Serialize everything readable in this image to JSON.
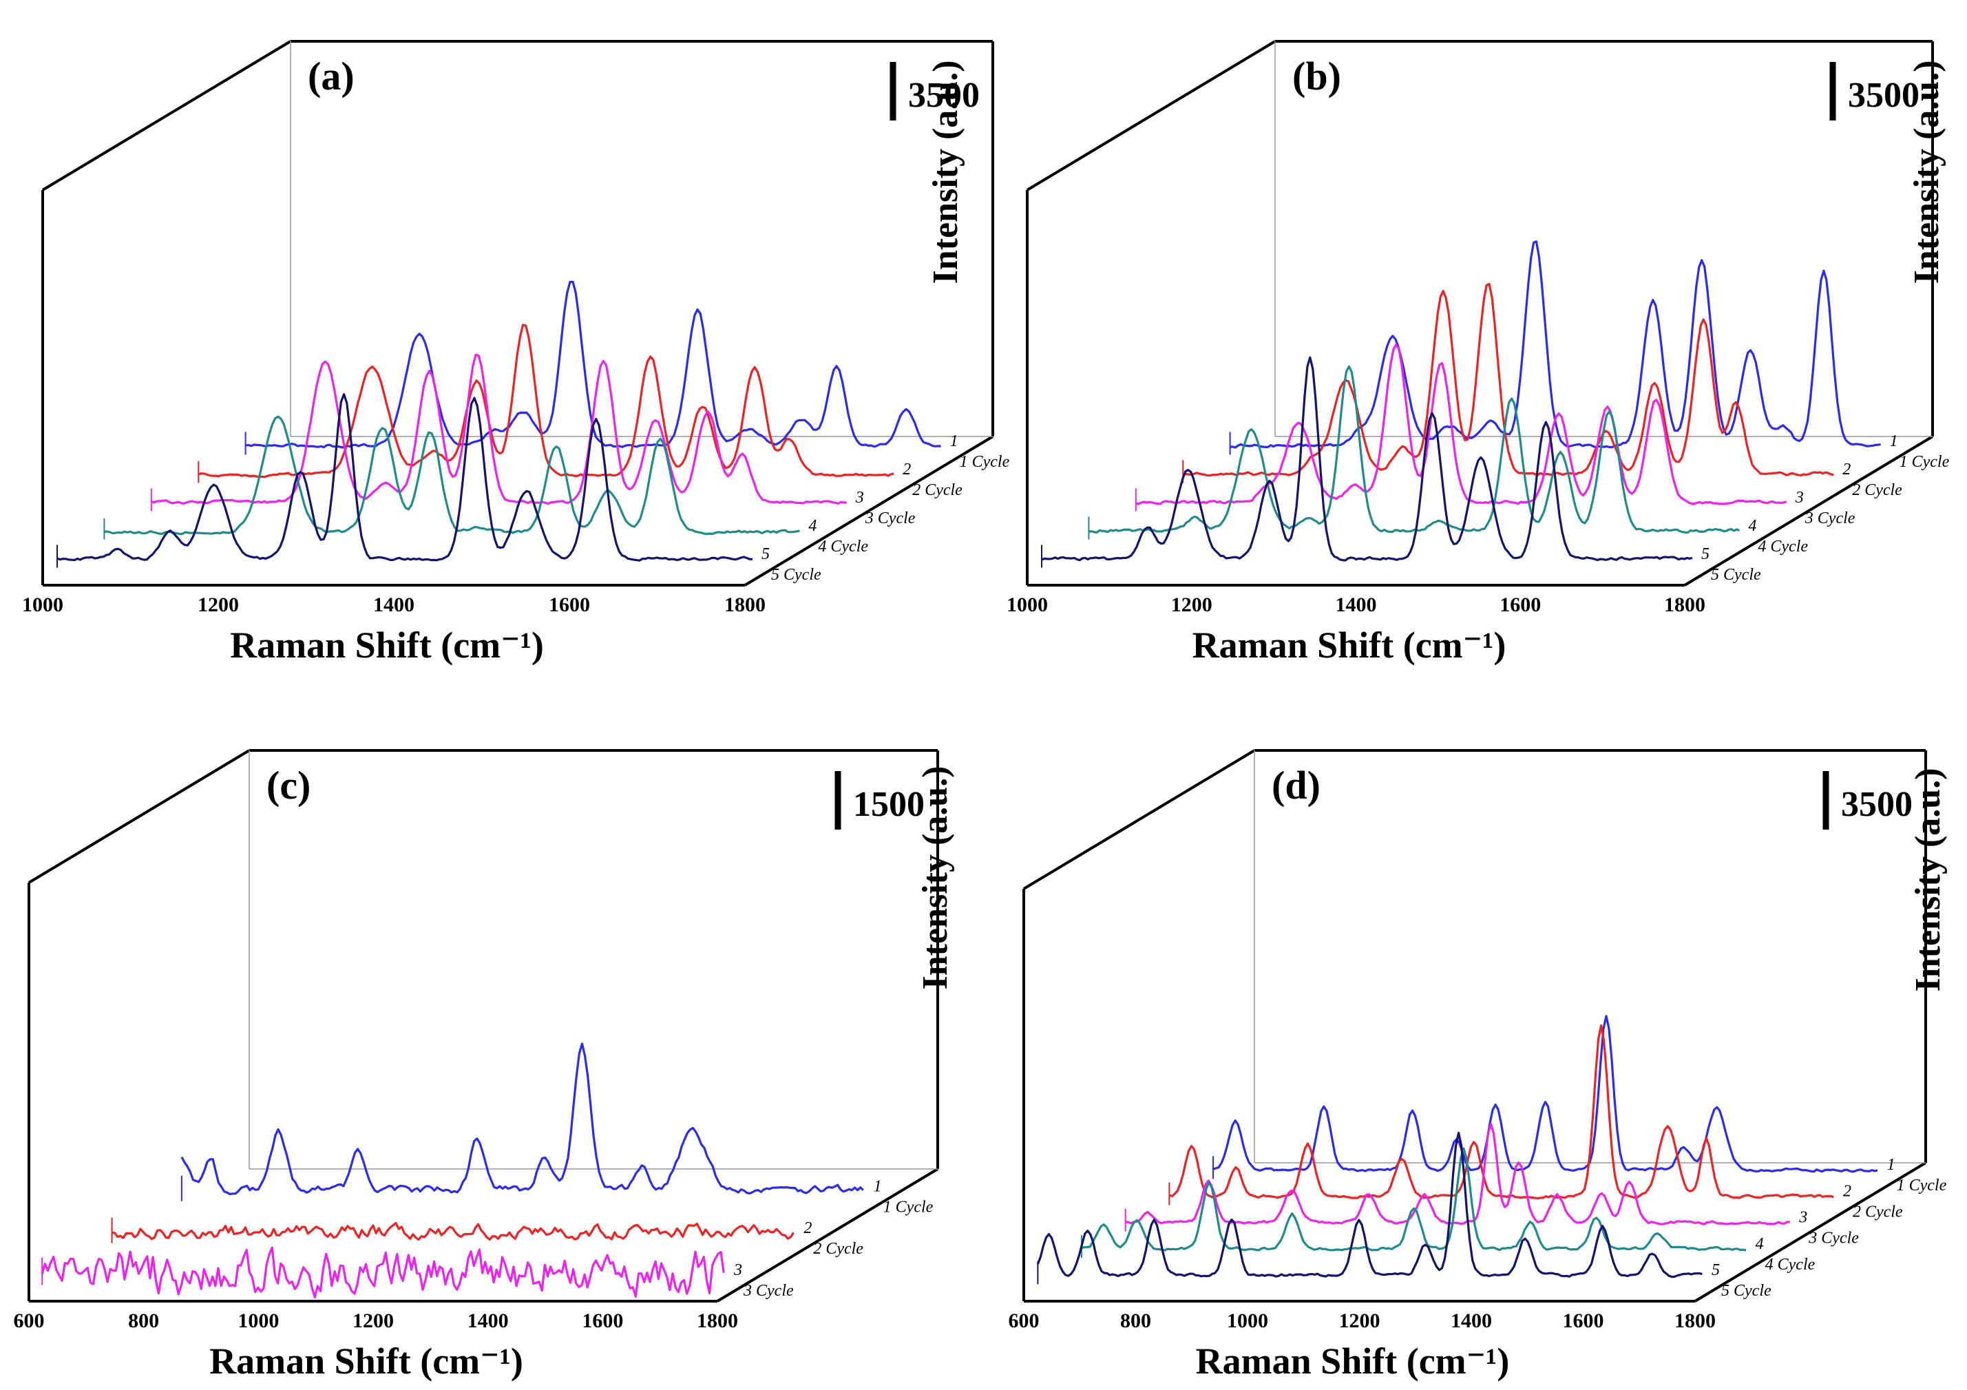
{
  "figure": {
    "panels": [
      {
        "label": "(a)",
        "scale_text": "3500"
      },
      {
        "label": "(b)",
        "scale_text": "3500"
      },
      {
        "label": "(c)",
        "scale_text": "1500"
      },
      {
        "label": "(d)",
        "scale_text": "3500"
      }
    ]
  },
  "colors": {
    "c1": "#2a2af0",
    "c2": "#ee2222",
    "c3": "#ee22ee",
    "c4": "#1e8c8c",
    "c5": "#14146e"
  },
  "chart_data": [
    {
      "type": "line",
      "subtype": "3d-stacked-spectra",
      "title": "(a)",
      "xlabel": "Raman Shift (cm⁻¹)",
      "ylabel": "Intensity (a.u.)",
      "xlim": [
        1000,
        1800
      ],
      "x_ticks": [
        "1000",
        "1200",
        "1400",
        "1600",
        "1800"
      ],
      "scale_bar": 3500,
      "series": [
        {
          "name": "1 Cycle",
          "num": "1",
          "color": "#2a2af0",
          "base": 200,
          "peaks": [
            [
              1200,
              6300,
              16
            ],
            [
              1285,
              800,
              12
            ],
            [
              1320,
              1900,
              13
            ],
            [
              1375,
              9400,
              12
            ],
            [
              1520,
              7700,
              12
            ],
            [
              1580,
              900,
              13
            ],
            [
              1640,
              1500,
              12
            ],
            [
              1680,
              4500,
              10
            ],
            [
              1760,
              2000,
              10
            ]
          ]
        },
        {
          "name": "2 Cycle",
          "num": "2",
          "color": "#ee2222",
          "base": 150,
          "peaks": [
            [
              1200,
              6100,
              18
            ],
            [
              1270,
              1300,
              14
            ],
            [
              1320,
              5300,
              13
            ],
            [
              1375,
              8500,
              12
            ],
            [
              1520,
              6700,
              12
            ],
            [
              1580,
              3900,
              12
            ],
            [
              1640,
              6100,
              12
            ],
            [
              1680,
              2000,
              10
            ]
          ]
        },
        {
          "name": "3 Cycle",
          "num": "3",
          "color": "#ee22ee",
          "base": 200,
          "peaks": [
            [
              1200,
              7900,
              16
            ],
            [
              1270,
              1000,
              12
            ],
            [
              1320,
              7400,
              13
            ],
            [
              1375,
              8300,
              12
            ],
            [
              1520,
              8000,
              12
            ],
            [
              1580,
              4600,
              13
            ],
            [
              1640,
              5100,
              12
            ],
            [
              1680,
              2700,
              10
            ]
          ]
        },
        {
          "name": "4 Cycle",
          "num": "4",
          "color": "#1e8c8c",
          "base": 100,
          "peaks": [
            [
              1200,
              6500,
              18
            ],
            [
              1320,
              5900,
              14
            ],
            [
              1375,
              5600,
              12
            ],
            [
              1430,
              300,
              10
            ],
            [
              1520,
              4900,
              12
            ],
            [
              1580,
              2300,
              13
            ],
            [
              1640,
              5300,
              12
            ]
          ]
        },
        {
          "name": "5 Cycle",
          "num": "5",
          "color": "#14146e",
          "base": 200,
          "peaks": [
            [
              1070,
              500,
              8
            ],
            [
              1130,
              1500,
              10
            ],
            [
              1180,
              4200,
              15
            ],
            [
              1280,
              4900,
              12
            ],
            [
              1330,
              9300,
              10
            ],
            [
              1480,
              9100,
              11
            ],
            [
              1540,
              3800,
              14
            ],
            [
              1620,
              7900,
              11
            ]
          ]
        }
      ]
    },
    {
      "type": "line",
      "subtype": "3d-stacked-spectra",
      "title": "(b)",
      "xlabel": "Raman Shift (cm⁻¹)",
      "ylabel": "Intensity (a.u.)",
      "xlim": [
        1000,
        1800
      ],
      "x_ticks": [
        "1000",
        "1200",
        "1400",
        "1600",
        "1800"
      ],
      "scale_bar": 3500,
      "series": [
        {
          "name": "1 Cycle",
          "num": "1",
          "color": "#2a2af0",
          "base": 200,
          "peaks": [
            [
              1160,
              800,
              10
            ],
            [
              1200,
              6200,
              16
            ],
            [
              1270,
              1100,
              14
            ],
            [
              1320,
              1400,
              13
            ],
            [
              1375,
              11600,
              12
            ],
            [
              1520,
              8200,
              12
            ],
            [
              1580,
              10400,
              12
            ],
            [
              1640,
              5400,
              12
            ],
            [
              1680,
              1100,
              10
            ],
            [
              1730,
              10000,
              10
            ]
          ]
        },
        {
          "name": "2 Cycle",
          "num": "2",
          "color": "#ee2222",
          "base": 200,
          "peaks": [
            [
              1160,
              800,
              10
            ],
            [
              1200,
              5300,
              16
            ],
            [
              1270,
              1500,
              12
            ],
            [
              1320,
              10300,
              13
            ],
            [
              1375,
              10800,
              12
            ],
            [
              1520,
              2400,
              12
            ],
            [
              1580,
              5200,
              12
            ],
            [
              1640,
              8700,
              12
            ],
            [
              1680,
              4000,
              10
            ]
          ]
        },
        {
          "name": "3 Cycle",
          "num": "3",
          "color": "#ee22ee",
          "base": 200,
          "peaks": [
            [
              1160,
              800,
              10
            ],
            [
              1200,
              4500,
              16
            ],
            [
              1270,
              900,
              12
            ],
            [
              1320,
              8900,
              13
            ],
            [
              1375,
              7900,
              12
            ],
            [
              1520,
              5000,
              12
            ],
            [
              1580,
              5400,
              12
            ],
            [
              1640,
              5800,
              12
            ]
          ]
        },
        {
          "name": "4 Cycle",
          "num": "4",
          "color": "#1e8c8c",
          "base": 200,
          "peaks": [
            [
              1130,
              700,
              10
            ],
            [
              1200,
              5700,
              16
            ],
            [
              1270,
              600,
              12
            ],
            [
              1320,
              9300,
              12
            ],
            [
              1430,
              600,
              10
            ],
            [
              1520,
              7400,
              12
            ],
            [
              1580,
              4400,
              12
            ],
            [
              1640,
              6700,
              12
            ]
          ]
        },
        {
          "name": "5 Cycle",
          "num": "5",
          "color": "#14146e",
          "base": 200,
          "peaks": [
            [
              1130,
              1800,
              10
            ],
            [
              1180,
              5000,
              15
            ],
            [
              1280,
              4300,
              12
            ],
            [
              1330,
              11400,
              10
            ],
            [
              1480,
              8300,
              11
            ],
            [
              1540,
              5600,
              14
            ],
            [
              1620,
              7700,
              11
            ]
          ]
        }
      ]
    },
    {
      "type": "line",
      "subtype": "3d-stacked-spectra",
      "title": "(c)",
      "xlabel": "Raman Shift (cm⁻¹)",
      "ylabel": "Intensity (a.u.)",
      "xlim": [
        600,
        1800
      ],
      "x_ticks": [
        "600",
        "800",
        "1000",
        "1200",
        "1400",
        "1600",
        "1800"
      ],
      "scale_bar": 1500,
      "series": [
        {
          "name": "1 Cycle",
          "num": "1",
          "color": "#2a2af0",
          "base": 150,
          "peaks": [
            [
              600,
              800,
              12
            ],
            [
              650,
              800,
              10
            ],
            [
              770,
              1400,
              14
            ],
            [
              910,
              900,
              12
            ],
            [
              1120,
              1300,
              12
            ],
            [
              1240,
              800,
              13
            ],
            [
              1305,
              3500,
              14
            ],
            [
              1410,
              600,
              12
            ],
            [
              1500,
              1400,
              24
            ]
          ]
        },
        {
          "name": "2 Cycle",
          "num": "2",
          "color": "#ee2222",
          "base": 150,
          "peaks": []
        },
        {
          "name": "3 Cycle",
          "num": "3",
          "color": "#ee22ee",
          "base": 200,
          "peaks": []
        }
      ]
    },
    {
      "type": "line",
      "subtype": "3d-stacked-spectra",
      "title": "(d)",
      "xlabel": "Raman Shift (cm⁻¹)",
      "ylabel": "Intensity (a.u.)",
      "xlim": [
        600,
        1800
      ],
      "x_ticks": [
        "600",
        "800",
        "1000",
        "1200",
        "1400",
        "1600",
        "1800"
      ],
      "scale_bar": 3500,
      "series": [
        {
          "name": "1 Cycle",
          "num": "1",
          "color": "#2a2af0",
          "base": 200,
          "peaks": [
            [
              640,
              2700,
              12
            ],
            [
              800,
              3600,
              12
            ],
            [
              960,
              3400,
              12
            ],
            [
              1040,
              1800,
              10
            ],
            [
              1110,
              3700,
              12
            ],
            [
              1200,
              3900,
              12
            ],
            [
              1310,
              8800,
              12
            ],
            [
              1450,
              1300,
              12
            ],
            [
              1510,
              3600,
              16
            ]
          ]
        },
        {
          "name": "2 Cycle",
          "num": "2",
          "color": "#ee2222",
          "base": 200,
          "peaks": [
            [
              640,
              2800,
              12
            ],
            [
              720,
              1600,
              10
            ],
            [
              850,
              2900,
              12
            ],
            [
              1020,
              2100,
              12
            ],
            [
              1150,
              3100,
              12
            ],
            [
              1380,
              9700,
              12
            ],
            [
              1500,
              4000,
              16
            ],
            [
              1570,
              3200,
              10
            ]
          ]
        },
        {
          "name": "3 Cycle",
          "num": "3",
          "color": "#ee22ee",
          "base": 200,
          "peaks": [
            [
              640,
              600,
              10
            ],
            [
              750,
              2400,
              12
            ],
            [
              900,
              1800,
              14
            ],
            [
              1040,
              1600,
              12
            ],
            [
              1140,
              1600,
              12
            ],
            [
              1260,
              5600,
              11
            ],
            [
              1310,
              3400,
              12
            ],
            [
              1380,
              1500,
              12
            ],
            [
              1460,
              1600,
              12
            ],
            [
              1510,
              2300,
              12
            ]
          ]
        },
        {
          "name": "4 Cycle",
          "num": "4",
          "color": "#1e8c8c",
          "base": 200,
          "peaks": [
            [
              640,
              1400,
              12
            ],
            [
              700,
              1600,
              12
            ],
            [
              830,
              3700,
              12
            ],
            [
              980,
              2000,
              12
            ],
            [
              1200,
              2300,
              12
            ],
            [
              1290,
              5600,
              12
            ],
            [
              1410,
              1500,
              12
            ],
            [
              1530,
              1800,
              12
            ],
            [
              1640,
              900,
              12
            ]
          ]
        },
        {
          "name": "5 Cycle",
          "num": "5",
          "color": "#14146e",
          "base": 200,
          "peaks": [
            [
              620,
              2300,
              12
            ],
            [
              690,
              2600,
              12
            ],
            [
              810,
              3100,
              12
            ],
            [
              950,
              3200,
              12
            ],
            [
              1180,
              3100,
              12
            ],
            [
              1300,
              1700,
              12
            ],
            [
              1360,
              8000,
              12
            ],
            [
              1480,
              2100,
              12
            ],
            [
              1620,
              2700,
              12
            ],
            [
              1710,
              1200,
              12
            ]
          ]
        }
      ]
    }
  ]
}
